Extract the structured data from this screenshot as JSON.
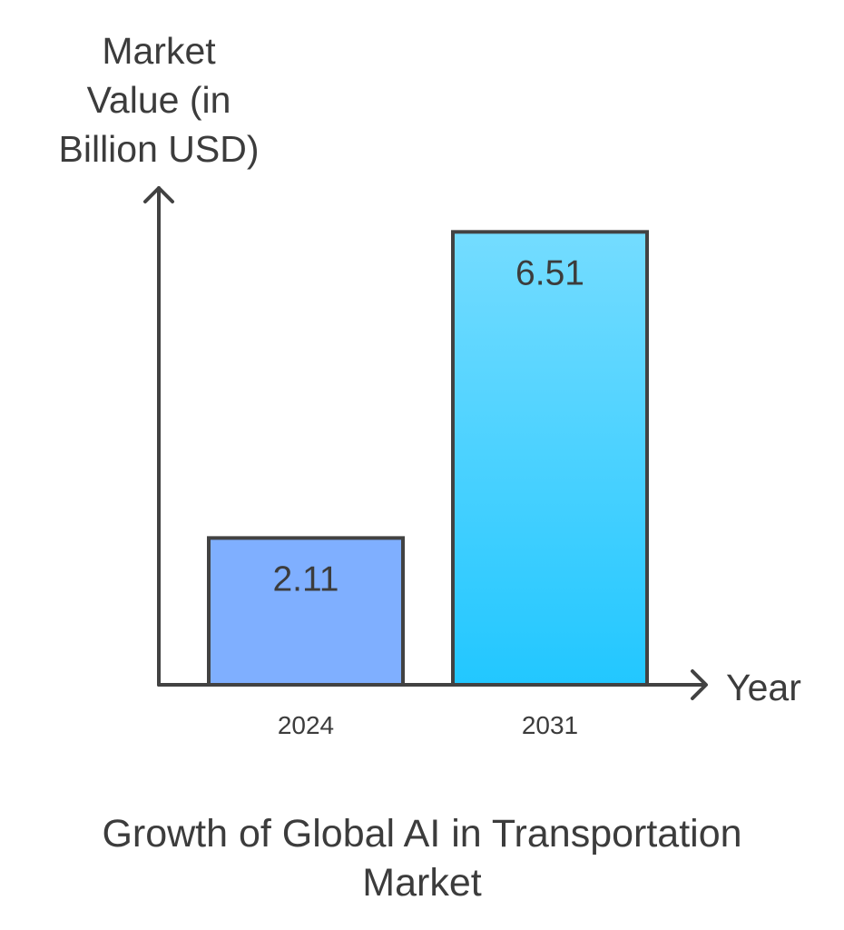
{
  "chart_data": {
    "type": "bar",
    "title_lines": [
      "Growth of Global AI in Transportation",
      "Market"
    ],
    "ylabel_lines": [
      "Market",
      "Value (in",
      "Billion USD)"
    ],
    "xlabel": "Year",
    "categories": [
      "2024",
      "2031"
    ],
    "values": [
      2.11,
      6.51
    ],
    "value_labels": [
      "2.11",
      "6.51"
    ],
    "ylim": [
      0,
      7.5
    ],
    "grid": false,
    "colors": {
      "bar_2024": "#7fafff",
      "bar_2031_top": "#74dcff",
      "bar_2031_bottom": "#22c7ff",
      "axis": "#424242",
      "text": "#3c3c3c"
    }
  }
}
